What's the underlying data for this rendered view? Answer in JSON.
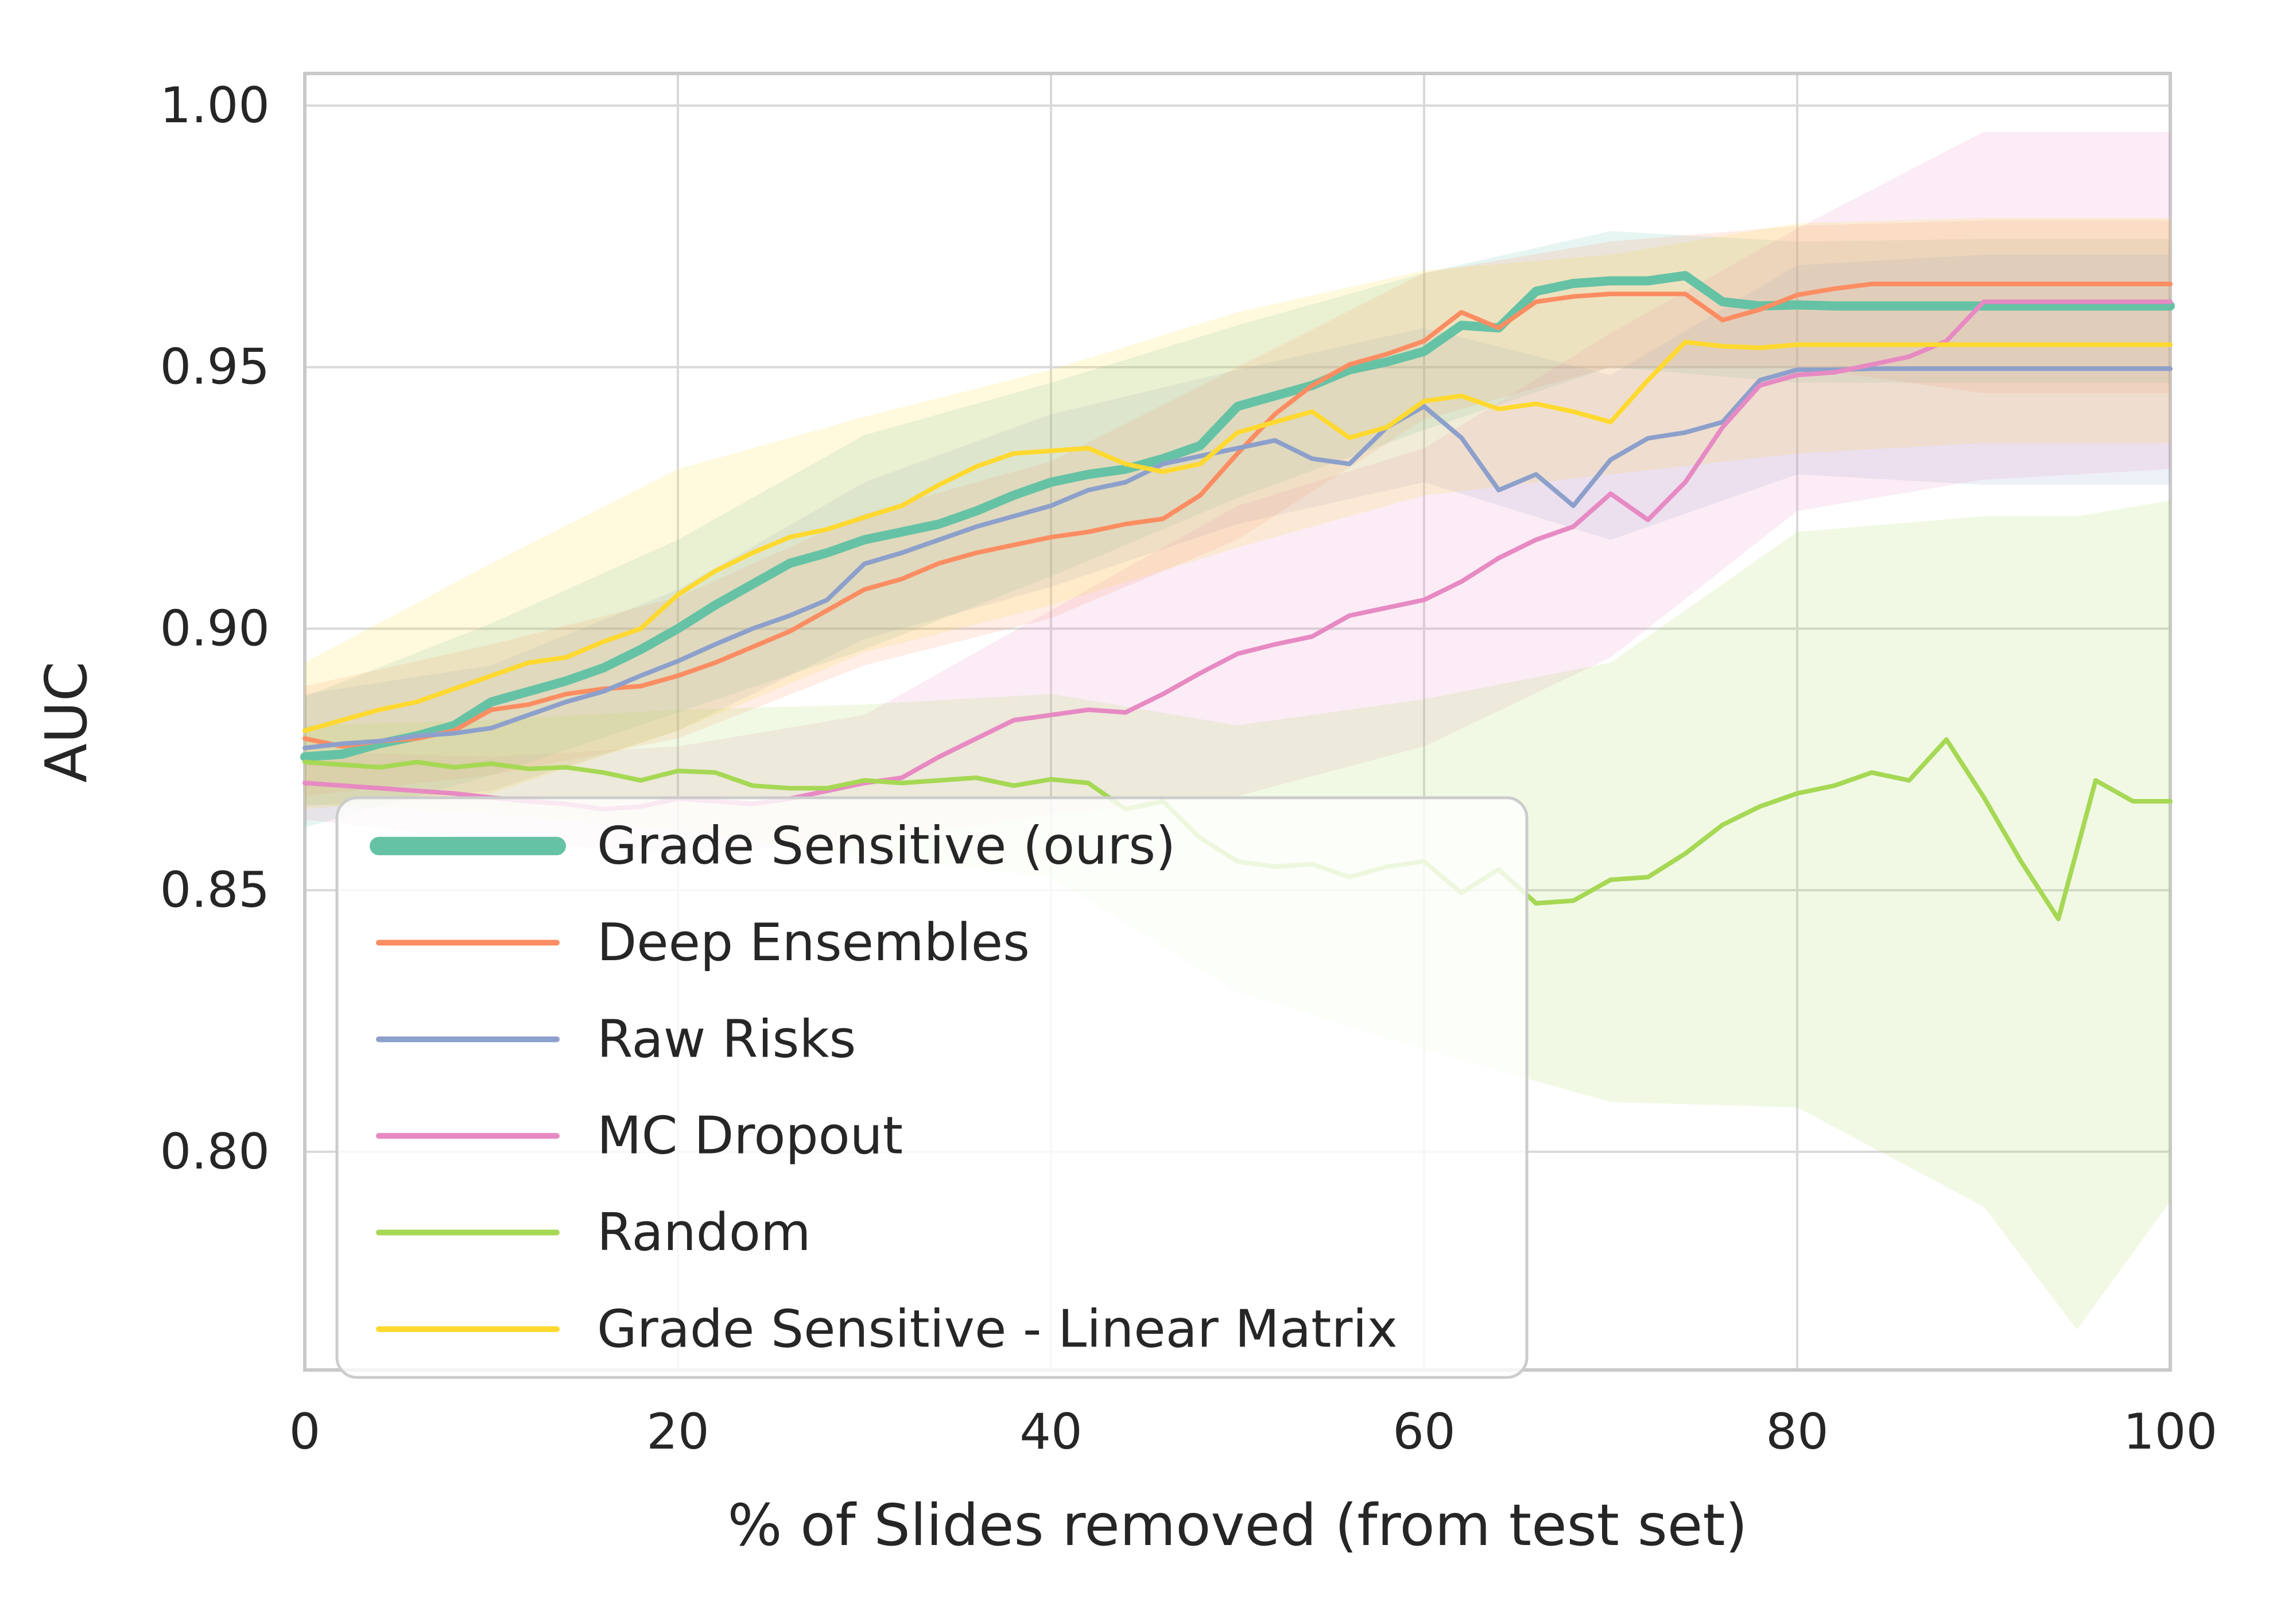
{
  "chart_data": {
    "type": "line",
    "title": "",
    "xlabel": "% of Slides removed (from test set)",
    "ylabel": "AUC",
    "xlim": [
      0,
      100
    ],
    "ylim": [
      0.758,
      1.006
    ],
    "x_ticks": [
      0,
      20,
      40,
      60,
      80,
      100
    ],
    "x_tick_labels": [
      "0",
      "20",
      "40",
      "60",
      "80",
      "100"
    ],
    "y_ticks": [
      1.0,
      0.95,
      0.9,
      0.85,
      0.8
    ],
    "y_tick_labels": [
      "1.00",
      "0.95",
      "0.90",
      "0.85",
      "0.80"
    ],
    "grid": true,
    "grid_color": "#d9d9d9",
    "spine_color": "#c9c9c9",
    "text_color": "#262626",
    "legend_position": "lower left",
    "band_opacity": 0.16,
    "x_step": 2,
    "series": [
      {
        "name": "Grade Sensitive (ours)",
        "color": "#66c2a5",
        "linewidth": 16,
        "legend_linewidth": 32,
        "values": [
          0.8755,
          0.876,
          0.878,
          0.8795,
          0.8815,
          0.886,
          0.888,
          0.89,
          0.8925,
          0.896,
          0.9,
          0.9045,
          0.9085,
          0.9125,
          0.9145,
          0.917,
          0.9185,
          0.92,
          0.9225,
          0.9255,
          0.928,
          0.9295,
          0.9305,
          0.9325,
          0.935,
          0.9425,
          0.9445,
          0.9465,
          0.9495,
          0.951,
          0.953,
          0.958,
          0.9575,
          0.9645,
          0.966,
          0.9665,
          0.9665,
          0.9675,
          0.9625,
          0.9617,
          0.9619,
          0.9617,
          0.9617,
          0.9617,
          0.9617,
          0.9617,
          0.9617,
          0.9617,
          0.9617,
          0.9617,
          0.9617
        ],
        "band": {
          "pct": [
            0,
            10,
            20,
            30,
            40,
            50,
            60,
            70,
            80,
            90,
            100
          ],
          "low": [
            0.862,
            0.872,
            0.884,
            0.896,
            0.91,
            0.925,
            0.938,
            0.95,
            0.947,
            0.947,
            0.947
          ],
          "high": [
            0.887,
            0.901,
            0.917,
            0.937,
            0.947,
            0.958,
            0.968,
            0.976,
            0.974,
            0.9745,
            0.9745
          ]
        }
      },
      {
        "name": "Deep Ensembles",
        "color": "#fc8d62",
        "linewidth": 8,
        "legend_linewidth": 10,
        "values": [
          0.879,
          0.8775,
          0.8785,
          0.879,
          0.8805,
          0.8845,
          0.8855,
          0.8875,
          0.8885,
          0.889,
          0.891,
          0.8935,
          0.8965,
          0.8995,
          0.9035,
          0.9075,
          0.9095,
          0.9125,
          0.9145,
          0.916,
          0.9175,
          0.9185,
          0.92,
          0.921,
          0.9255,
          0.9335,
          0.941,
          0.9465,
          0.9505,
          0.9525,
          0.955,
          0.9605,
          0.9575,
          0.9625,
          0.9635,
          0.964,
          0.964,
          0.964,
          0.959,
          0.961,
          0.9638,
          0.965,
          0.9659,
          0.9659,
          0.9659,
          0.9659,
          0.9659,
          0.9659,
          0.9659,
          0.9659,
          0.9659
        ],
        "band": {
          "pct": [
            0,
            10,
            20,
            30,
            40,
            50,
            60,
            70,
            80,
            90,
            100
          ],
          "low": [
            0.868,
            0.872,
            0.879,
            0.893,
            0.902,
            0.917,
            0.94,
            0.95,
            0.95,
            0.945,
            0.945
          ],
          "high": [
            0.889,
            0.897,
            0.906,
            0.922,
            0.932,
            0.95,
            0.968,
            0.974,
            0.977,
            0.978,
            0.978
          ]
        }
      },
      {
        "name": "Raw Risks",
        "color": "#8da0cb",
        "linewidth": 8,
        "legend_linewidth": 10,
        "values": [
          0.8772,
          0.878,
          0.8785,
          0.8795,
          0.88,
          0.881,
          0.8835,
          0.886,
          0.888,
          0.891,
          0.8938,
          0.897,
          0.9,
          0.9025,
          0.9055,
          0.9124,
          0.9145,
          0.917,
          0.9195,
          0.9215,
          0.9235,
          0.9265,
          0.928,
          0.9315,
          0.933,
          0.9345,
          0.936,
          0.9325,
          0.9315,
          0.9385,
          0.9425,
          0.9365,
          0.9265,
          0.9295,
          0.9235,
          0.9323,
          0.9364,
          0.9375,
          0.9395,
          0.9475,
          0.9495,
          0.9495,
          0.9497,
          0.9497,
          0.9497,
          0.9497,
          0.9497,
          0.9497,
          0.9497,
          0.9497,
          0.9497
        ],
        "band": {
          "pct": [
            0,
            10,
            20,
            30,
            40,
            50,
            60,
            70,
            80,
            90,
            100
          ],
          "low": [
            0.866,
            0.869,
            0.8805,
            0.898,
            0.908,
            0.92,
            0.928,
            0.917,
            0.9295,
            0.9275,
            0.9275
          ],
          "high": [
            0.8875,
            0.893,
            0.9075,
            0.928,
            0.941,
            0.9495,
            0.9575,
            0.9485,
            0.9695,
            0.9715,
            0.9715
          ]
        }
      },
      {
        "name": "MC Dropout",
        "color": "#e78ac3",
        "linewidth": 8,
        "legend_linewidth": 10,
        "values": [
          0.8705,
          0.87,
          0.8695,
          0.869,
          0.8685,
          0.8677,
          0.867,
          0.8665,
          0.8655,
          0.866,
          0.8675,
          0.867,
          0.8665,
          0.8675,
          0.869,
          0.8705,
          0.8715,
          0.8755,
          0.879,
          0.8825,
          0.8835,
          0.8845,
          0.884,
          0.8875,
          0.8915,
          0.8952,
          0.897,
          0.8985,
          0.9025,
          0.904,
          0.9055,
          0.909,
          0.9135,
          0.917,
          0.9195,
          0.9258,
          0.9208,
          0.928,
          0.9385,
          0.9465,
          0.9485,
          0.949,
          0.9505,
          0.952,
          0.955,
          0.9625,
          0.9625,
          0.9625,
          0.9625,
          0.9625,
          0.9625
        ],
        "band": {
          "pct": [
            0,
            10,
            20,
            30,
            40,
            50,
            60,
            70,
            80,
            90,
            100
          ],
          "low": [
            0.8635,
            0.8595,
            0.857,
            0.859,
            0.8645,
            0.868,
            0.8775,
            0.8945,
            0.9225,
            0.9285,
            0.9305
          ],
          "high": [
            0.8765,
            0.8755,
            0.8775,
            0.8835,
            0.9035,
            0.9235,
            0.9345,
            0.9565,
            0.9765,
            0.995,
            0.995
          ]
        }
      },
      {
        "name": "Random",
        "color": "#a6d854",
        "linewidth": 8,
        "legend_linewidth": 10,
        "values": [
          0.8745,
          0.874,
          0.8735,
          0.8745,
          0.8735,
          0.8742,
          0.8732,
          0.8735,
          0.8725,
          0.871,
          0.8728,
          0.8725,
          0.87,
          0.8695,
          0.8695,
          0.871,
          0.8705,
          0.871,
          0.8715,
          0.87,
          0.8712,
          0.8705,
          0.8655,
          0.867,
          0.86,
          0.8555,
          0.8545,
          0.855,
          0.8525,
          0.8545,
          0.8555,
          0.8495,
          0.854,
          0.8475,
          0.848,
          0.852,
          0.8525,
          0.857,
          0.8625,
          0.866,
          0.8685,
          0.87,
          0.8725,
          0.871,
          0.8788,
          0.8678,
          0.8555,
          0.8445,
          0.871,
          0.867,
          0.867
        ],
        "band": {
          "pct": [
            0,
            10,
            20,
            30,
            40,
            50,
            60,
            70,
            80,
            90,
            95,
            100
          ],
          "low": [
            0.8665,
            0.8645,
            0.8615,
            0.8565,
            0.8525,
            0.8305,
            0.8195,
            0.8095,
            0.8085,
            0.7895,
            0.766,
            0.7905
          ],
          "high": [
            0.8815,
            0.8825,
            0.8845,
            0.8855,
            0.8875,
            0.8815,
            0.8865,
            0.8935,
            0.9185,
            0.9215,
            0.9215,
            0.9245
          ]
        }
      },
      {
        "name": "Grade Sensitive - Linear Matrix",
        "color": "#ffd92f",
        "linewidth": 8,
        "legend_linewidth": 10,
        "values": [
          0.8805,
          0.8825,
          0.8845,
          0.886,
          0.8885,
          0.891,
          0.8935,
          0.8945,
          0.8975,
          0.9,
          0.9065,
          0.911,
          0.9145,
          0.9175,
          0.919,
          0.9213,
          0.9235,
          0.9275,
          0.931,
          0.9335,
          0.934,
          0.9345,
          0.9315,
          0.93,
          0.9315,
          0.9375,
          0.9395,
          0.9415,
          0.9365,
          0.9385,
          0.9435,
          0.9445,
          0.942,
          0.943,
          0.9415,
          0.9395,
          0.9475,
          0.9548,
          0.954,
          0.9537,
          0.9543,
          0.9543,
          0.9543,
          0.9543,
          0.9543,
          0.9543,
          0.9543,
          0.9543,
          0.9543,
          0.9543,
          0.9543
        ],
        "band": {
          "pct": [
            0,
            10,
            20,
            30,
            40,
            50,
            60,
            70,
            80,
            90,
            100
          ],
          "low": [
            0.8655,
            0.8685,
            0.8805,
            0.8955,
            0.9045,
            0.9155,
            0.9255,
            0.9295,
            0.9335,
            0.9355,
            0.9355
          ],
          "high": [
            0.8935,
            0.9125,
            0.9305,
            0.9405,
            0.9495,
            0.9605,
            0.9685,
            0.9715,
            0.9775,
            0.9785,
            0.9785
          ]
        }
      }
    ]
  }
}
